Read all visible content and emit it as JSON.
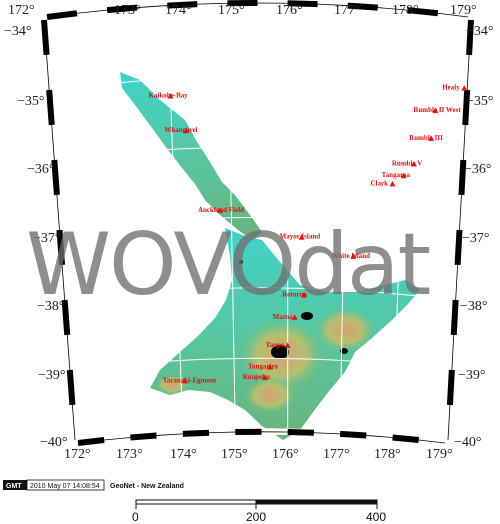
{
  "map": {
    "top_longitude_labels": [
      "172°",
      "173°",
      "174°",
      "175°",
      "176°",
      "177°",
      "178°",
      "179°"
    ],
    "bottom_longitude_labels": [
      "172°",
      "173°",
      "174°",
      "175°",
      "176°",
      "177°",
      "178°",
      "179°"
    ],
    "left_latitude_labels": [
      "−34°",
      "−35°",
      "−36°",
      "−37°",
      "−38°",
      "−39°",
      "−40°"
    ],
    "right_latitude_labels": [
      "−34°",
      "−35°",
      "−36°",
      "−37°",
      "−38°",
      "−39°",
      "−40°"
    ],
    "watermark": "WOVOdat",
    "volcanoes": [
      {
        "name": "Kaikohe-Bay",
        "lon": 174.0,
        "lat": -35.25
      },
      {
        "name": "Whangarei",
        "lon": 174.25,
        "lat": -35.75
      },
      {
        "name": "Auckland Field",
        "lon": 174.8,
        "lat": -36.9
      },
      {
        "name": "Mayor Island",
        "lon": 176.25,
        "lat": -37.28
      },
      {
        "name": "White Island",
        "lon": 177.18,
        "lat": -37.52
      },
      {
        "name": "Rotorua",
        "lon": 176.3,
        "lat": -38.1
      },
      {
        "name": "Maroa",
        "lon": 176.13,
        "lat": -38.42
      },
      {
        "name": "Taupo",
        "lon": 176.0,
        "lat": -38.82
      },
      {
        "name": "Tongariro",
        "lon": 175.67,
        "lat": -39.13
      },
      {
        "name": "Ruapehu",
        "lon": 175.57,
        "lat": -39.28
      },
      {
        "name": "Taranaki-Egmont",
        "lon": 174.07,
        "lat": -39.3
      },
      {
        "name": "Rumble V",
        "lon": 178.2,
        "lat": -36.14
      },
      {
        "name": "Tangaroa",
        "lon": 178.03,
        "lat": -36.32
      },
      {
        "name": "Clark",
        "lon": 177.84,
        "lat": -36.45
      },
      {
        "name": "Rumble III",
        "lon": 178.48,
        "lat": -35.75
      },
      {
        "name": "Rumble II West",
        "lon": 178.53,
        "lat": -35.35
      },
      {
        "name": "Healy",
        "lon": 179.0,
        "lat": -34.98
      }
    ]
  },
  "footer": {
    "logo": "GMT",
    "timestamp": "2010 May 07 14:08:54",
    "source": "GeoNet - New Zealand"
  },
  "scale": {
    "ticks": [
      "0",
      "200",
      "400"
    ]
  },
  "colors": {
    "frame": "#000000",
    "volcano_marker": "#e01818",
    "watermark": "#6e6e6e"
  }
}
